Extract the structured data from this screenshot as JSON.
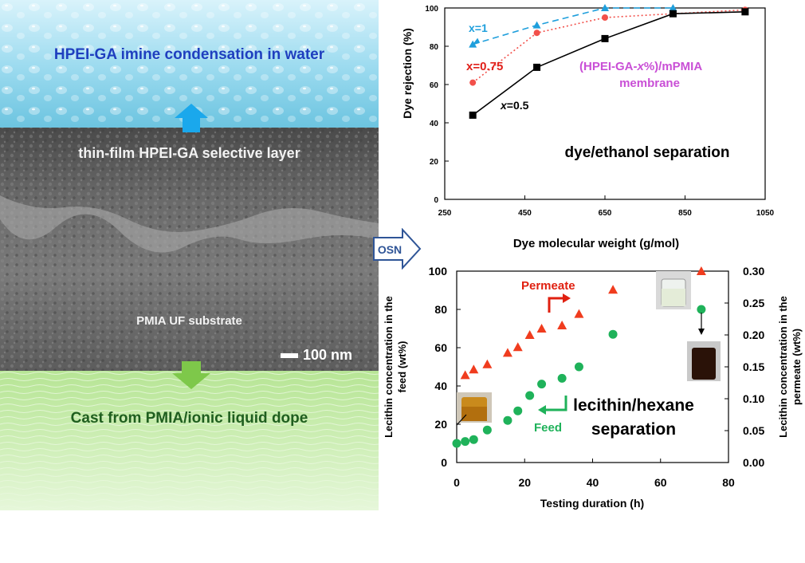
{
  "left_panel": {
    "top_label": "HPEI-GA imine condensation in water",
    "selective_layer_label": "thin-film HPEI-GA selective layer",
    "substrate_label": "PMIA UF substrate",
    "scale_bar_label": "100 nm",
    "bottom_label": "Cast from PMIA/ionic liquid dope",
    "osn_label": "OSN"
  },
  "chart_data": [
    {
      "type": "line",
      "xlabel": "Dye molecular weight (g/mol)",
      "ylabel": "Dye rejection (%)",
      "xlim": [
        250,
        1050
      ],
      "ylim": [
        0,
        100
      ],
      "xticks": [
        "250",
        "450",
        "650",
        "850",
        "1050"
      ],
      "yticks": [
        "0",
        "20",
        "40",
        "60",
        "80",
        "100"
      ],
      "series": [
        {
          "name": "x=1",
          "color": "#1f9fdc",
          "marker": "triangle",
          "line": "dashed",
          "x": [
            320,
            480,
            650,
            820
          ],
          "y": [
            81,
            91,
            100,
            100
          ]
        },
        {
          "name": "x=0.75",
          "color": "#f2504a",
          "marker": "circle",
          "line": "dotted",
          "x": [
            320,
            480,
            650,
            820,
            1000
          ],
          "y": [
            61,
            87,
            95,
            97,
            99
          ]
        },
        {
          "name": "x=0.5",
          "color": "#000000",
          "marker": "square",
          "line": "solid",
          "x": [
            320,
            480,
            650,
            820,
            1000
          ],
          "y": [
            44,
            69,
            84,
            97,
            98
          ]
        }
      ],
      "annotations": {
        "label_x1": "x=1",
        "label_x075": "x=0.75",
        "label_x05_prefix": "x",
        "label_x05_suffix": "=0.5",
        "membrane_prefix": "(HPEI-GA-",
        "membrane_italic": "x",
        "membrane_suffix": "%)/mPMIA",
        "membrane_line2": "membrane",
        "panel_title": "dye/ethanol separation"
      }
    },
    {
      "type": "scatter",
      "xlabel": "Testing duration (h)",
      "ylabel_left_line1": "Lecithin concentration in the",
      "ylabel_left_line2": "feed (wt%)",
      "ylabel_right_line1": "Lecithin concentration in the",
      "ylabel_right_line2": "permeate (wt%)",
      "xlim": [
        0,
        80
      ],
      "ylim_left": [
        0,
        100
      ],
      "ylim_right": [
        0,
        0.3
      ],
      "xticks": [
        "0",
        "20",
        "40",
        "60",
        "80"
      ],
      "yticks_left": [
        "0",
        "20",
        "40",
        "60",
        "80",
        "100"
      ],
      "yticks_right": [
        "0.00",
        "0.05",
        "0.10",
        "0.15",
        "0.20",
        "0.25",
        "0.30"
      ],
      "series": [
        {
          "name": "Feed",
          "axis": "left",
          "color": "#1fb25a",
          "marker": "circle",
          "x": [
            0,
            2.5,
            5,
            9,
            15,
            18,
            21.5,
            25,
            31,
            36,
            46,
            72
          ],
          "y": [
            10,
            11,
            12,
            17,
            22,
            27,
            35,
            41,
            44,
            50,
            67,
            80
          ]
        },
        {
          "name": "Permeate",
          "axis": "right",
          "color": "#f03c1e",
          "marker": "triangle",
          "x": [
            2.5,
            5,
            9,
            15,
            18,
            21.5,
            25,
            31,
            36,
            46,
            72
          ],
          "y": [
            0.137,
            0.146,
            0.154,
            0.172,
            0.181,
            0.2,
            0.21,
            0.215,
            0.233,
            0.271,
            0.3
          ]
        }
      ],
      "annotations": {
        "permeate_label": "Permeate",
        "feed_label": "Feed",
        "panel_title_line1": "lecithin/hexane",
        "panel_title_line2": "separation"
      }
    }
  ],
  "colors": {
    "water_blue": "#8fd8ee",
    "sem_gray": "#6e6e6e",
    "green_bg": "#c6ecab",
    "arrow_blue": "#1aa8ec",
    "arrow_green": "#7ec84a",
    "osn_blue": "#2f5597",
    "membrane_label": "#c94fd6",
    "x1_label": "#1f9fdc",
    "x075_label": "#e0201a",
    "feed_label": "#1fb25a",
    "permeate_label": "#e02010"
  }
}
